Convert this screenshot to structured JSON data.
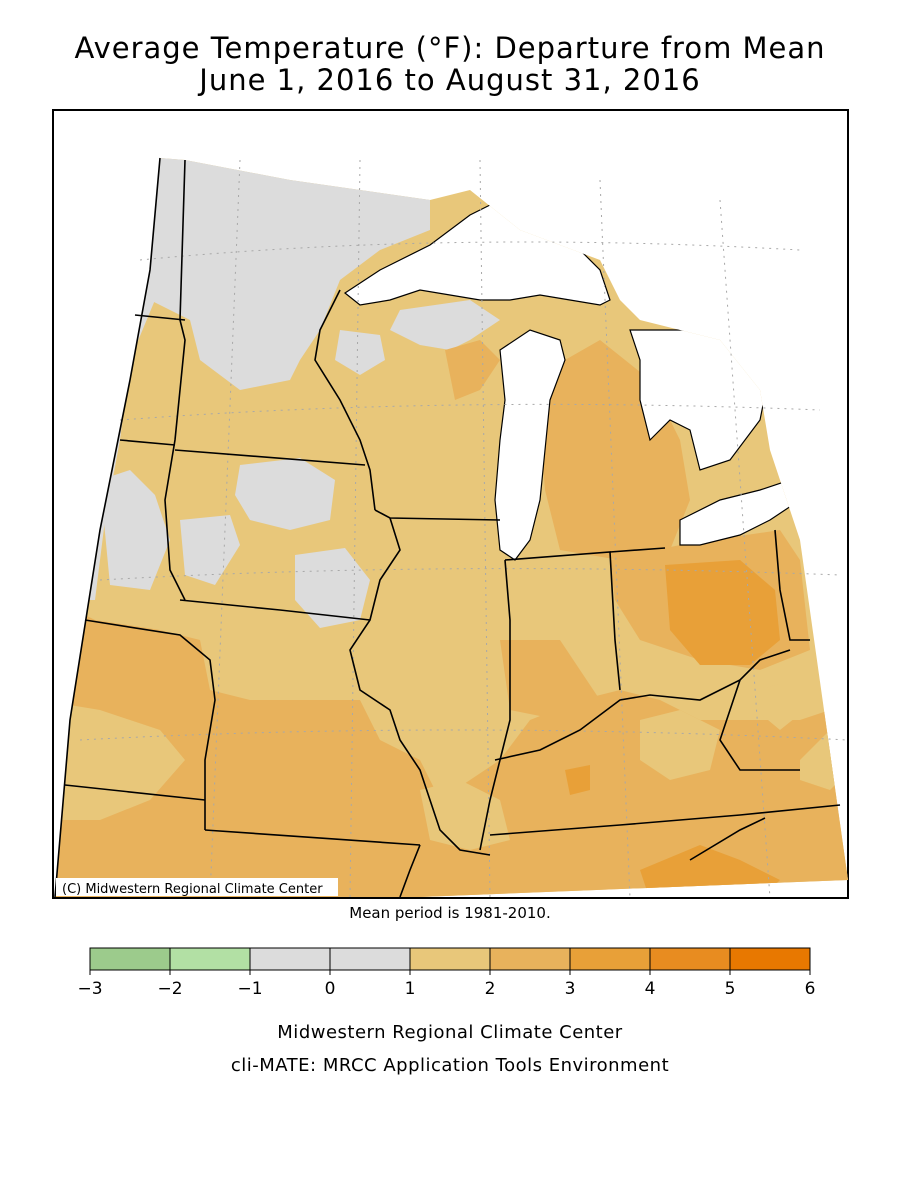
{
  "title_line1": "Average Temperature (°F): Departure from Mean",
  "title_line2": "June 1, 2016 to August 31, 2016",
  "copyright": "(C) Midwestern Regional Climate Center",
  "mean_period": "Mean period is 1981-2010.",
  "legend": {
    "ticks": [
      "−3",
      "−2",
      "−1",
      "0",
      "1",
      "2",
      "3",
      "4",
      "5",
      "6"
    ],
    "colors": [
      "#9ccb8c",
      "#b2e0a4",
      "#dcdcdc",
      "#dcdcdc",
      "#e8c77a",
      "#e8b25c",
      "#e8a038",
      "#e88c20",
      "#e87800"
    ]
  },
  "footer_line1": "Midwestern Regional Climate Center",
  "footer_line2": "cli-MATE: MRCC Application Tools Environment",
  "colors": {
    "gray": "#dcdcdc",
    "light_tan": "#e8c77a",
    "tan": "#e8b25c",
    "orange": "#e8a038",
    "water": "#ffffff",
    "border": "#000000"
  }
}
